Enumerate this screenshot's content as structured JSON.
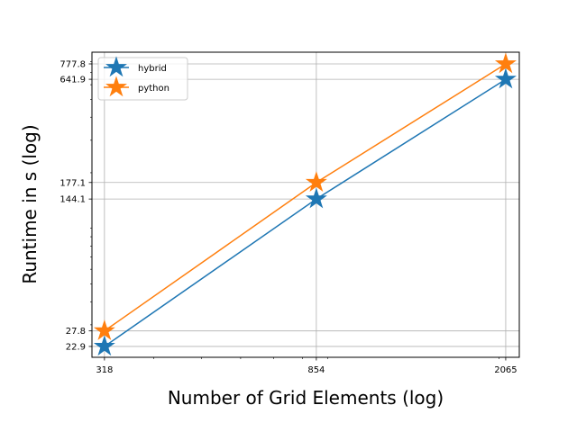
{
  "chart_data": {
    "type": "line",
    "title": "",
    "xlabel": "Number of Grid Elements (log)",
    "ylabel": "Runtime in s (log)",
    "xscale": "log",
    "yscale": "log",
    "xlim": [
      300,
      2200
    ],
    "ylim": [
      20,
      900
    ],
    "x": [
      318,
      854,
      2065
    ],
    "x_tick_labels": [
      "318",
      "854",
      "2065"
    ],
    "y_ticks": [
      22.9,
      27.8,
      144.1,
      177.1,
      641.9,
      777.8
    ],
    "y_tick_labels": [
      "22.9",
      "27.8",
      "144.1",
      "177.1",
      "641.9",
      "777.8"
    ],
    "grid": true,
    "legend_position": "upper-left",
    "marker": "star",
    "series": [
      {
        "name": "hybrid",
        "color": "#1f77b4",
        "values": [
          22.9,
          144.1,
          641.9
        ]
      },
      {
        "name": "python",
        "color": "#ff7f0e",
        "values": [
          27.8,
          177.1,
          777.8
        ]
      }
    ]
  }
}
